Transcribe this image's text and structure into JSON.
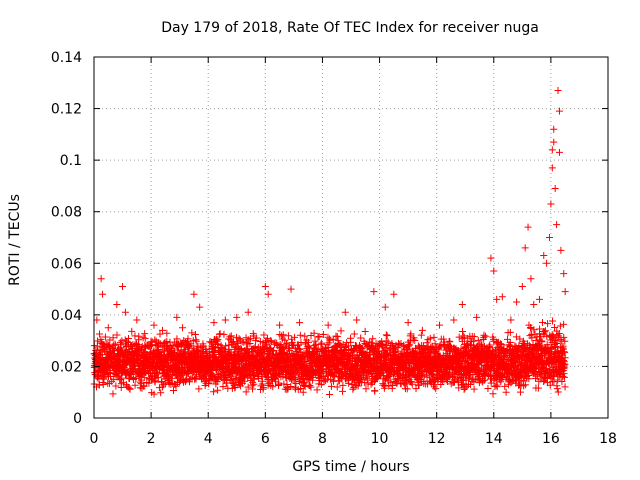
{
  "chart_data": {
    "type": "scatter",
    "title": "Day 179 of 2018, Rate Of TEC Index for receiver nuga",
    "xlabel": "GPS time / hours",
    "ylabel": "ROTI / TECUs",
    "xlim": [
      0,
      18
    ],
    "ylim": [
      0,
      0.14
    ],
    "xticks": [
      0,
      2,
      4,
      6,
      8,
      10,
      12,
      14,
      16,
      18
    ],
    "xtick_labels": [
      "0",
      "2",
      "4",
      "6",
      "8",
      "10",
      "12",
      "14",
      "16",
      "18"
    ],
    "yticks": [
      0,
      0.02,
      0.04,
      0.06,
      0.08,
      0.1,
      0.12,
      0.14
    ],
    "ytick_labels": [
      "0",
      "0.02",
      "0.04",
      "0.06",
      "0.08",
      "0.1",
      "0.12",
      "0.14"
    ],
    "grid": true,
    "marker": "+",
    "color": "#ff0000",
    "series": [
      {
        "name": "ROTI",
        "x_range": [
          0,
          16.5
        ],
        "typical_range": [
          0.008,
          0.035
        ],
        "points": [
          [
            0.1,
            0.038
          ],
          [
            0.25,
            0.054
          ],
          [
            0.3,
            0.048
          ],
          [
            0.5,
            0.035
          ],
          [
            0.8,
            0.044
          ],
          [
            1.0,
            0.051
          ],
          [
            1.1,
            0.041
          ],
          [
            1.5,
            0.038
          ],
          [
            2.1,
            0.036
          ],
          [
            2.4,
            0.034
          ],
          [
            2.9,
            0.039
          ],
          [
            3.1,
            0.035
          ],
          [
            3.5,
            0.048
          ],
          [
            3.7,
            0.043
          ],
          [
            4.2,
            0.037
          ],
          [
            4.6,
            0.038
          ],
          [
            5.0,
            0.039
          ],
          [
            5.4,
            0.041
          ],
          [
            6.0,
            0.051
          ],
          [
            6.1,
            0.048
          ],
          [
            6.5,
            0.036
          ],
          [
            6.9,
            0.05
          ],
          [
            7.2,
            0.037
          ],
          [
            7.6,
            0.032
          ],
          [
            8.2,
            0.036
          ],
          [
            8.8,
            0.041
          ],
          [
            9.2,
            0.038
          ],
          [
            9.8,
            0.049
          ],
          [
            10.2,
            0.043
          ],
          [
            10.5,
            0.048
          ],
          [
            11.0,
            0.037
          ],
          [
            11.5,
            0.034
          ],
          [
            12.1,
            0.036
          ],
          [
            12.6,
            0.038
          ],
          [
            12.9,
            0.044
          ],
          [
            13.4,
            0.039
          ],
          [
            13.9,
            0.062
          ],
          [
            14.0,
            0.057
          ],
          [
            14.1,
            0.046
          ],
          [
            14.3,
            0.047
          ],
          [
            14.6,
            0.038
          ],
          [
            14.8,
            0.045
          ],
          [
            15.0,
            0.051
          ],
          [
            15.1,
            0.066
          ],
          [
            15.2,
            0.074
          ],
          [
            15.3,
            0.054
          ],
          [
            15.4,
            0.044
          ],
          [
            15.6,
            0.046
          ],
          [
            15.75,
            0.063
          ],
          [
            15.85,
            0.06
          ],
          [
            15.95,
            0.07
          ],
          [
            16.0,
            0.083
          ],
          [
            16.05,
            0.097
          ],
          [
            16.05,
            0.104
          ],
          [
            16.1,
            0.112
          ],
          [
            16.1,
            0.107
          ],
          [
            16.15,
            0.089
          ],
          [
            16.2,
            0.075
          ],
          [
            16.25,
            0.127
          ],
          [
            16.3,
            0.119
          ],
          [
            16.3,
            0.103
          ],
          [
            16.35,
            0.065
          ],
          [
            16.45,
            0.056
          ],
          [
            16.5,
            0.049
          ]
        ]
      }
    ]
  }
}
